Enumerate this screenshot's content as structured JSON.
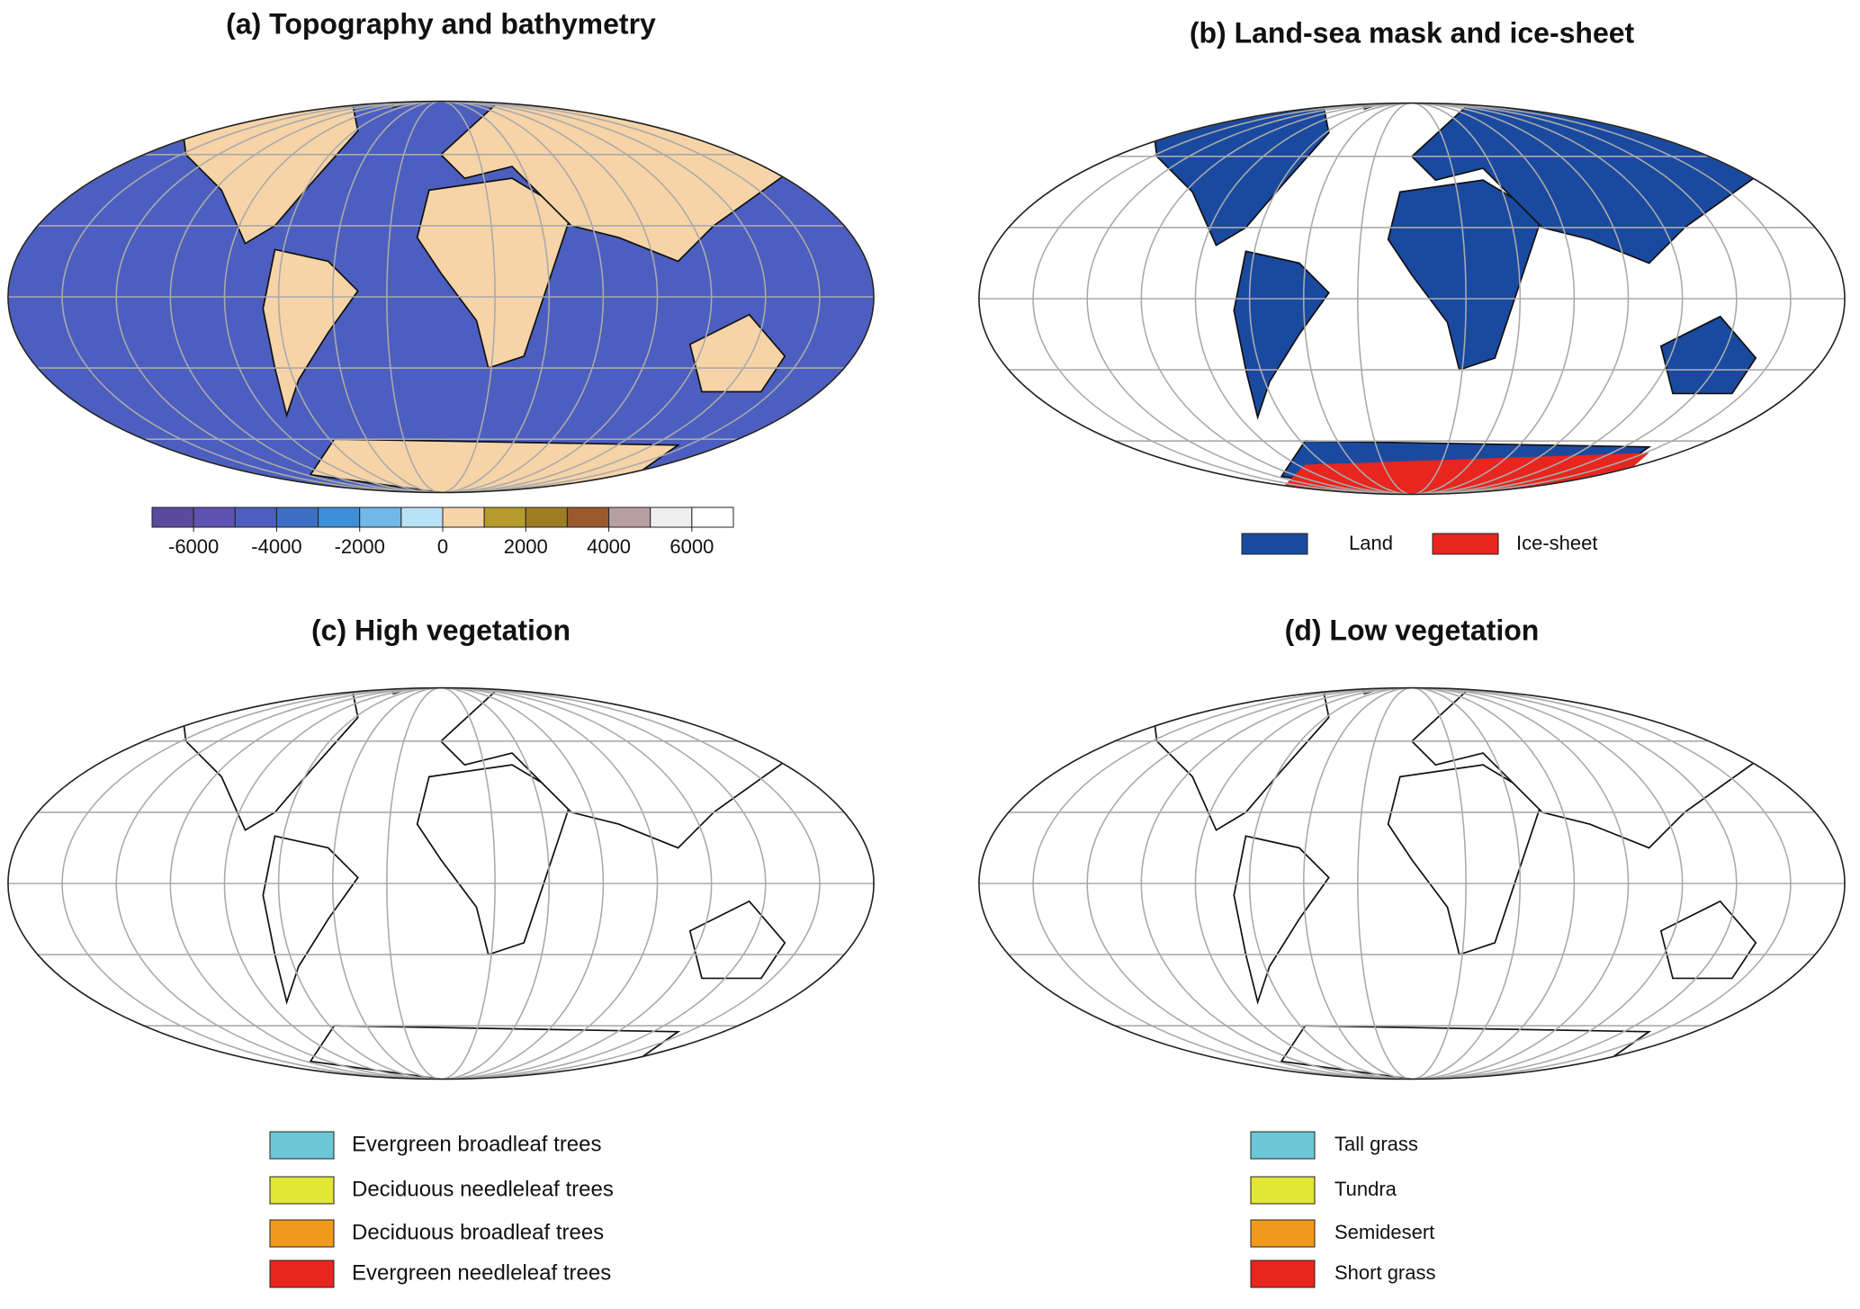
{
  "panels": [
    {
      "title": "(a) Topography and bathymetry",
      "colorbar": {
        "lim": [
          -7000,
          7000
        ],
        "colors": [
          "#5a4a9e",
          "#5f52b2",
          "#4c5fc0",
          "#3d6fc4",
          "#3d8fd8",
          "#6fb8e8",
          "#b9e1f6",
          "#f6d4a8",
          "#b59b2c",
          "#9b7d24",
          "#9a5a2e",
          "#b9a0a0",
          "#eeeeee",
          "#ffffff"
        ],
        "ticks": [
          -6000,
          -4000,
          -2000,
          0,
          2000,
          4000,
          6000
        ]
      }
    },
    {
      "title": "(b) Land-sea mask and ice-sheet",
      "legend": [
        {
          "name": "Land",
          "color": "#1a4aa0"
        },
        {
          "name": "Ice-sheet",
          "color": "#e8251e"
        }
      ]
    },
    {
      "title": "(c) High vegetation",
      "legend": [
        {
          "name": "Evergreen broadleaf trees",
          "color": "#6cc8d4"
        },
        {
          "name": "Deciduous needleleaf trees",
          "color": "#e3e633"
        },
        {
          "name": "Deciduous broadleaf trees",
          "color": "#f29a1e"
        },
        {
          "name": "Evergreen needleleaf trees",
          "color": "#e8251e"
        }
      ]
    },
    {
      "title": "(d) Low vegetation",
      "legend": [
        {
          "name": "Tall grass",
          "color": "#6cc8d4"
        },
        {
          "name": "Tundra",
          "color": "#e3e633"
        },
        {
          "name": "Semidesert",
          "color": "#f29a1e"
        },
        {
          "name": "Short grass",
          "color": "#e8251e"
        }
      ]
    }
  ]
}
